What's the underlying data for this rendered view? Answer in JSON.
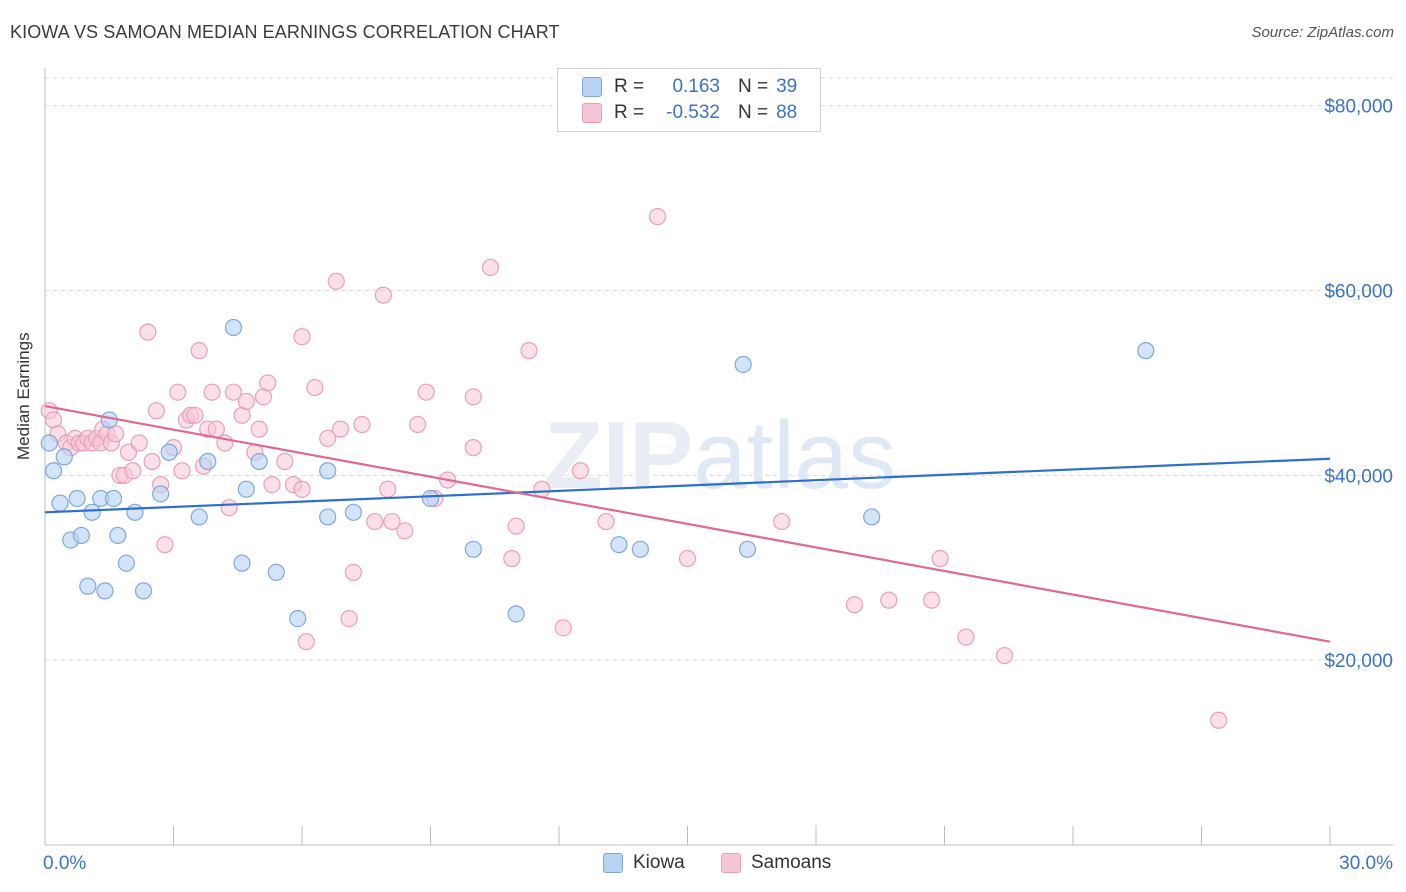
{
  "header": {
    "title": "KIOWA VS SAMOAN MEDIAN EARNINGS CORRELATION CHART",
    "source": "Source: ZipAtlas.com"
  },
  "legend": {
    "kiowa": {
      "r_label": "R =",
      "r_value": "0.163",
      "n_label": "N =",
      "n_value": "39"
    },
    "samoans": {
      "r_label": "R =",
      "r_value": "-0.532",
      "n_label": "N =",
      "n_value": "88"
    }
  },
  "bottom_legend": {
    "kiowa": "Kiowa",
    "samoans": "Samoans"
  },
  "colors": {
    "kiowa_fill": "#b8d2f3",
    "kiowa_stroke": "#7fa8dc",
    "kiowa_line": "#2f6fce",
    "samoan_fill": "#f7c6d6",
    "samoan_stroke": "#e8a0ba",
    "samoan_line": "#e0698f",
    "tick_label": "#3b73c4",
    "grid": "#d9d9d9"
  },
  "chart_data": {
    "type": "scatter",
    "title": "KIOWA VS SAMOAN MEDIAN EARNINGS CORRELATION CHART",
    "ylabel": "Median Earnings",
    "xlabel": "",
    "xlim": [
      0,
      30
    ],
    "ylim": [
      0,
      83000
    ],
    "x_tick_labels": [
      "0.0%",
      "30.0%"
    ],
    "y_ticks": [
      20000,
      40000,
      60000,
      80000
    ],
    "y_tick_labels": [
      "$20,000",
      "$40,000",
      "$60,000",
      "$80,000"
    ],
    "grid": true,
    "legend_position": "top-center",
    "watermark": "ZIPatlas",
    "series": [
      {
        "name": "Kiowa",
        "r": 0.163,
        "n": 39,
        "trend": [
          [
            0,
            36000
          ],
          [
            30,
            41800
          ]
        ],
        "points": [
          [
            0.1,
            43500
          ],
          [
            0.2,
            40500
          ],
          [
            0.35,
            37000
          ],
          [
            0.45,
            42000
          ],
          [
            0.6,
            33000
          ],
          [
            0.75,
            37500
          ],
          [
            0.85,
            33500
          ],
          [
            1.0,
            28000
          ],
          [
            1.1,
            36000
          ],
          [
            1.3,
            37500
          ],
          [
            1.4,
            27500
          ],
          [
            1.5,
            46000
          ],
          [
            1.6,
            37500
          ],
          [
            1.7,
            33500
          ],
          [
            1.9,
            30500
          ],
          [
            2.1,
            36000
          ],
          [
            2.3,
            27500
          ],
          [
            2.7,
            38000
          ],
          [
            2.9,
            42500
          ],
          [
            3.6,
            35500
          ],
          [
            3.8,
            41500
          ],
          [
            4.4,
            56000
          ],
          [
            4.6,
            30500
          ],
          [
            4.7,
            38500
          ],
          [
            5.0,
            41500
          ],
          [
            5.4,
            29500
          ],
          [
            5.9,
            24500
          ],
          [
            6.6,
            40500
          ],
          [
            6.6,
            35500
          ],
          [
            7.2,
            36000
          ],
          [
            9.0,
            37500
          ],
          [
            10.0,
            32000
          ],
          [
            11.0,
            25000
          ],
          [
            13.4,
            32500
          ],
          [
            13.9,
            32000
          ],
          [
            16.3,
            52000
          ],
          [
            16.4,
            32000
          ],
          [
            19.3,
            35500
          ],
          [
            25.7,
            53500
          ]
        ]
      },
      {
        "name": "Samoans",
        "r": -0.532,
        "n": 88,
        "trend": [
          [
            0,
            47500
          ],
          [
            30,
            22000
          ]
        ],
        "points": [
          [
            0.1,
            47000
          ],
          [
            0.2,
            46000
          ],
          [
            0.3,
            44500
          ],
          [
            0.5,
            43500
          ],
          [
            0.6,
            43000
          ],
          [
            0.7,
            44000
          ],
          [
            0.8,
            43500
          ],
          [
            0.9,
            43500
          ],
          [
            1.0,
            44000
          ],
          [
            1.1,
            43500
          ],
          [
            1.2,
            44000
          ],
          [
            1.3,
            43500
          ],
          [
            1.35,
            45000
          ],
          [
            1.45,
            44500
          ],
          [
            1.55,
            43500
          ],
          [
            1.65,
            44500
          ],
          [
            1.75,
            40000
          ],
          [
            1.85,
            40000
          ],
          [
            1.95,
            42500
          ],
          [
            2.05,
            40500
          ],
          [
            2.2,
            43500
          ],
          [
            2.4,
            55500
          ],
          [
            2.5,
            41500
          ],
          [
            2.6,
            47000
          ],
          [
            2.7,
            39000
          ],
          [
            2.8,
            32500
          ],
          [
            3.0,
            43000
          ],
          [
            3.1,
            49000
          ],
          [
            3.2,
            40500
          ],
          [
            3.3,
            46000
          ],
          [
            3.4,
            46500
          ],
          [
            3.5,
            46500
          ],
          [
            3.6,
            53500
          ],
          [
            3.7,
            41000
          ],
          [
            3.8,
            45000
          ],
          [
            3.9,
            49000
          ],
          [
            4.0,
            45000
          ],
          [
            4.2,
            43500
          ],
          [
            4.3,
            36500
          ],
          [
            4.4,
            49000
          ],
          [
            4.6,
            46500
          ],
          [
            4.7,
            48000
          ],
          [
            4.9,
            42500
          ],
          [
            5.0,
            45000
          ],
          [
            5.1,
            48500
          ],
          [
            5.2,
            50000
          ],
          [
            5.3,
            39000
          ],
          [
            5.6,
            41500
          ],
          [
            5.8,
            39000
          ],
          [
            6.0,
            55000
          ],
          [
            6.1,
            22000
          ],
          [
            6.3,
            49500
          ],
          [
            6.6,
            44000
          ],
          [
            6.8,
            61000
          ],
          [
            6.9,
            45000
          ],
          [
            7.1,
            24500
          ],
          [
            7.2,
            29500
          ],
          [
            7.4,
            45500
          ],
          [
            7.7,
            35000
          ],
          [
            7.9,
            59500
          ],
          [
            8.1,
            35000
          ],
          [
            8.4,
            34000
          ],
          [
            8.7,
            45500
          ],
          [
            8.9,
            49000
          ],
          [
            9.1,
            37500
          ],
          [
            9.4,
            39500
          ],
          [
            10.0,
            43000
          ],
          [
            10.4,
            62500
          ],
          [
            10.9,
            31000
          ],
          [
            11.0,
            34500
          ],
          [
            11.3,
            53500
          ],
          [
            11.6,
            38500
          ],
          [
            12.1,
            23500
          ],
          [
            12.5,
            40500
          ],
          [
            13.1,
            35000
          ],
          [
            14.3,
            68000
          ],
          [
            15.0,
            31000
          ],
          [
            17.2,
            35000
          ],
          [
            18.9,
            26000
          ],
          [
            19.7,
            26500
          ],
          [
            20.7,
            26500
          ],
          [
            20.9,
            31000
          ],
          [
            21.5,
            22500
          ],
          [
            22.4,
            20500
          ],
          [
            27.4,
            13500
          ],
          [
            10.0,
            48500
          ],
          [
            6.0,
            38500
          ],
          [
            8.0,
            38500
          ]
        ]
      }
    ]
  }
}
